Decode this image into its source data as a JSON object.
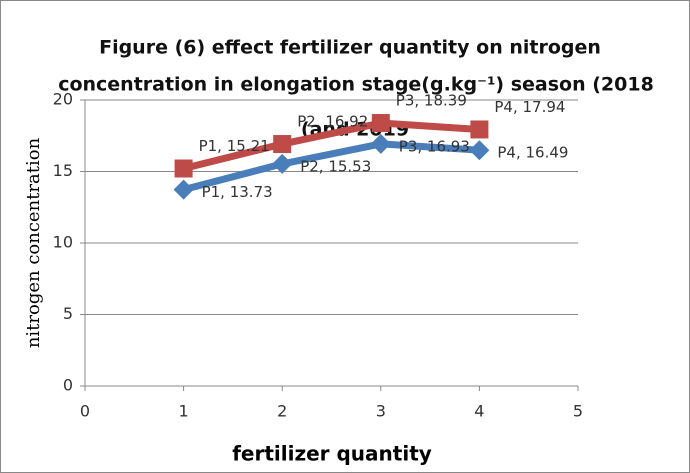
{
  "chart_data": {
    "type": "line",
    "title": [
      "Figure (6) effect  fertilizer quantity on nitrogen",
      "concentration in elongation stage(g.kg⁻¹) season (2018",
      "(and 2019"
    ],
    "x_label": "fertilizer quantity",
    "y_label": "nitrogen  concentration",
    "x": [
      1,
      2,
      3,
      4
    ],
    "series": [
      {
        "color": "#4a7ebb",
        "marker": "diamond",
        "values": [
          13.73,
          15.53,
          16.93,
          16.49
        ],
        "value_labels": [
          "P1, 13.73",
          "P2, 15.53",
          "P3, 16.93",
          "P4, 16.49"
        ]
      },
      {
        "color": "#be4b48",
        "marker": "square",
        "values": [
          15.21,
          16.92,
          18.39,
          17.94
        ],
        "value_labels": [
          "P1, 15.21",
          "P2, 16.92",
          "P3, 18.39",
          "P4, 17.94"
        ]
      }
    ],
    "xlim": [
      0,
      5
    ],
    "xticks": [
      0,
      1,
      2,
      3,
      4,
      5
    ],
    "ylim": [
      0,
      20
    ],
    "yticks": [
      0,
      5,
      10,
      15,
      20
    ],
    "grid": true
  }
}
